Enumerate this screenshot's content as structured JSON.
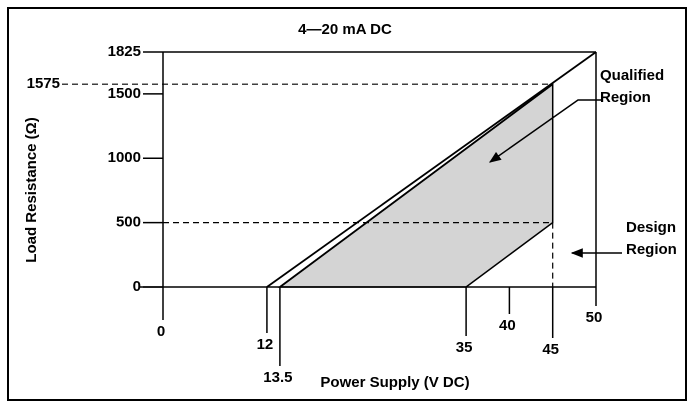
{
  "chart_data": {
    "type": "line",
    "title": "4—20 mA DC",
    "xlabel": "Power Supply (V DC)",
    "ylabel": "Load Resistance (Ω)",
    "xlim": [
      0,
      50
    ],
    "ylim": [
      0,
      1825
    ],
    "xticks": [
      0,
      12,
      13.5,
      35,
      40,
      45,
      50
    ],
    "yticks": [
      0,
      500,
      1000,
      1500,
      1825
    ],
    "lines": [
      {
        "x": [
          12,
          50
        ],
        "y": [
          0,
          1825
        ]
      },
      {
        "x": [
          13.5,
          45
        ],
        "y": [
          0,
          1575
        ]
      }
    ],
    "region": {
      "x": [
        13.5,
        35,
        45,
        45
      ],
      "y": [
        0,
        0,
        500,
        1575
      ],
      "color": "#d4d4d4"
    },
    "reference_lines": [
      {
        "y": 1575,
        "x": 45
      },
      {
        "y": 500,
        "x": 45
      }
    ],
    "annotations": [
      {
        "lines": [
          "Qualified",
          "Region"
        ]
      },
      {
        "lines": [
          "Design",
          "Region"
        ]
      }
    ]
  }
}
